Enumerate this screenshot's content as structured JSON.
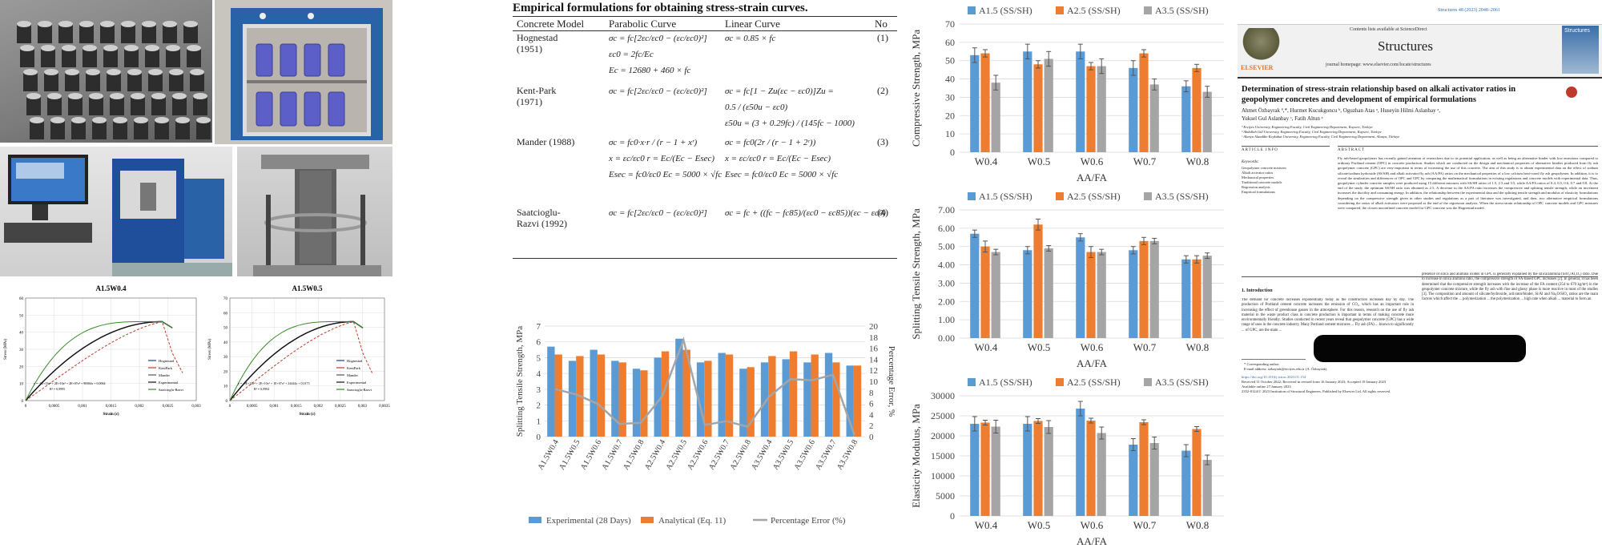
{
  "photos": {
    "specimens": "specimens-photo",
    "oven": "oven-photo",
    "testing_machine": "testing-machine-photo",
    "specimen_in_frame": "specimen-frame-photo"
  },
  "stress_strain_charts": [
    {
      "title": "A1.5W0.4",
      "ylabel": "Stress (MPa)",
      "xlabel": "Strain (ε)",
      "yticks": [
        "0",
        "10",
        "20",
        "30",
        "40",
        "50",
        "60"
      ],
      "xticks": [
        "0",
        "0,0005",
        "0,001",
        "0,0015",
        "0,002",
        "0,0025",
        "0,003"
      ],
      "legend": [
        "Hognestad",
        "KentPark",
        "Mander",
        "Experimental",
        "Saatcioglu-Razvi"
      ],
      "equation": "y = -1E+13x⁴ + 2E+10x³ + 2E+07x² + 98384x + 0,0064",
      "r2": "R² = 0,9995"
    },
    {
      "title": "A1.5W0.5",
      "ylabel": "Stress (MPa)",
      "xlabel": "Strain (ε)",
      "yticks": [
        "0",
        "10",
        "20",
        "30",
        "40",
        "50",
        "60",
        "70"
      ],
      "xticks": [
        "0",
        "0,0005",
        "0,001",
        "0,0015",
        "0,002",
        "0,0025",
        "0,003",
        "0,0035"
      ],
      "legend": [
        "Hognestad",
        "KentPark",
        "Mander",
        "Experimental",
        "Saatcioglu-Razvi"
      ],
      "equation": "y = -9E+12x⁴ + 2E+10x³ + 1E+07x² + 24444x + 0,0173",
      "r2": "R² = 0,9994"
    }
  ],
  "table": {
    "title": "Empirical formulations for obtaining stress-strain curves.",
    "headers": [
      "Concrete Model",
      "Parabolic Curve",
      "Linear Curve",
      "No"
    ],
    "rows": [
      {
        "model": "Hognestad (1951)",
        "parabolic": [
          "σc = fc[2εc/εc0 − (εc/εc0)²]",
          "εc0 = 2fc/Ec",
          "Ec = 12680 + 460 × fc"
        ],
        "linear": [
          "σc = 0.85 × fc"
        ],
        "no": "(1)"
      },
      {
        "model": "Kent-Park (1971)",
        "parabolic": [
          "σc = fc[2εc/εc0 − (εc/εc0)²]"
        ],
        "linear": [
          "σc = fc[1 − Zu(εc − εc0)]Zu =",
          "0.5 / (ε50u − εc0)",
          "ε50u = (3 + 0.29fc) / (145fc − 1000)"
        ],
        "no": "(2)"
      },
      {
        "model": "Mander (1988)",
        "parabolic": [
          "σc = fc0·x·r / (r − 1 + xʳ)",
          "x = εc/εc0  r = Ec/(Ec − Esec)",
          "Esec = fc0/εc0  Ec = 5000 × √fc"
        ],
        "linear": [
          "σc = fc0(2r / (r − 1 + 2ʳ))",
          "x = εc/εc0  r = Ec/(Ec − Esec)",
          "Esec = fc0/εc0  Ec = 5000 × √fc"
        ],
        "no": "(3)"
      },
      {
        "model": "Saatcioglu-Razvi (1992)",
        "parabolic": [
          "σc = fc[2εc/εc0 − (εc/εc0)²]"
        ],
        "linear": [
          "σc = fc + ((fc − fc85)/(εc0 − εc85))(εc − εc0)"
        ],
        "no": "(4)"
      }
    ]
  },
  "split_chart": {
    "chart_data": {
      "type": "bar",
      "categories": [
        "A1.5W0.4",
        "A1.5W0.5",
        "A1.5W0.6",
        "A1.5W0.7",
        "A1.5W0.8",
        "A2.5W0.4",
        "A2.5W0.5",
        "A2.5W0.6",
        "A2.5W0.7",
        "A2.5W0.8",
        "A3.5W0.4",
        "A3.5W0.5",
        "A3.5W0.6",
        "A3.5W0.7",
        "A3.5W0.8"
      ],
      "series": [
        {
          "name": "Experimental (28 Days)",
          "values": [
            5.7,
            4.8,
            5.5,
            4.8,
            4.3,
            5.0,
            6.2,
            4.7,
            5.3,
            4.3,
            4.7,
            4.9,
            4.7,
            5.3,
            4.5
          ]
        },
        {
          "name": "Analytical (Eq. 11)",
          "values": [
            5.2,
            5.1,
            5.2,
            4.7,
            4.2,
            5.4,
            5.5,
            4.8,
            5.2,
            4.4,
            5.1,
            5.4,
            5.2,
            4.7,
            4.5
          ]
        },
        {
          "name": "Percentage Error (%)",
          "values": [
            8.6,
            7.6,
            5.9,
            2.3,
            2.5,
            7.3,
            17.5,
            2.1,
            2.8,
            1.8,
            7.2,
            10.4,
            10.2,
            11.2,
            0.3
          ]
        }
      ],
      "ylabel": "Splitting Tensile Strength, MPa",
      "y2label": "Percentage Error, %",
      "ylim": [
        0,
        7
      ],
      "y2lim": [
        0,
        20
      ],
      "yticks": [
        "0",
        "1",
        "2",
        "3",
        "4",
        "5",
        "6",
        "7"
      ],
      "y2ticks": [
        "0",
        "2",
        "4",
        "6",
        "8",
        "10",
        "12",
        "14",
        "16",
        "18",
        "20"
      ],
      "legend_position": "bottom"
    }
  },
  "right_charts": [
    {
      "chart_data": {
        "type": "bar",
        "categories": [
          "W0.4",
          "W0.5",
          "W0.6",
          "W0.7",
          "W0.8"
        ],
        "series": [
          {
            "name": "A1.5 (SS/SH)",
            "values": [
              53,
              55,
              55,
              46,
              36
            ]
          },
          {
            "name": "A2.5 (SS/SH)",
            "values": [
              54,
              48,
              47,
              54,
              46
            ]
          },
          {
            "name": "A3.5 (SS/SH)",
            "values": [
              38,
              51,
              47,
              37,
              33
            ]
          }
        ],
        "errors": [
          [
            4,
            4,
            4,
            4,
            3
          ],
          [
            2,
            2,
            2,
            2,
            2
          ],
          [
            4,
            4,
            4,
            3,
            3
          ]
        ],
        "ylabel": "Compressive Strength, MPa",
        "xlabel": "AA/FA",
        "ylim": [
          0,
          70
        ],
        "yticks": [
          "0",
          "10",
          "20",
          "30",
          "40",
          "50",
          "60",
          "70"
        ],
        "legend_position": "top-left"
      }
    },
    {
      "chart_data": {
        "type": "bar",
        "categories": [
          "W0.4",
          "W0.5",
          "W0.6",
          "W0.7",
          "W0.8"
        ],
        "series": [
          {
            "name": "A1.5 (SS/SH)",
            "values": [
              5.7,
              4.8,
              5.5,
              4.8,
              4.3
            ]
          },
          {
            "name": "A2.5 (SS/SH)",
            "values": [
              5.0,
              6.2,
              4.7,
              5.3,
              4.3
            ]
          },
          {
            "name": "A3.5 (SS/SH)",
            "values": [
              4.7,
              4.9,
              4.7,
              5.3,
              4.5
            ]
          }
        ],
        "errors": [
          [
            0.2,
            0.2,
            0.2,
            0.2,
            0.2
          ],
          [
            0.3,
            0.3,
            0.3,
            0.2,
            0.2
          ],
          [
            0.15,
            0.15,
            0.15,
            0.15,
            0.15
          ]
        ],
        "ylabel": "Splitting Tensile Strength, MPa",
        "xlabel": "AA/FA",
        "ylim": [
          0,
          7
        ],
        "yticks": [
          "0.00",
          "1.00",
          "2.00",
          "3.00",
          "4.00",
          "5.00",
          "6.00",
          "7.00"
        ],
        "legend_position": "top-left"
      }
    },
    {
      "chart_data": {
        "type": "bar",
        "categories": [
          "W0.4",
          "W0.5",
          "W0.6",
          "W0.7",
          "W0.8"
        ],
        "series": [
          {
            "name": "A1.5 (SS/SH)",
            "values": [
              23000,
              23000,
              26800,
              17800,
              16300
            ]
          },
          {
            "name": "A2.5 (SS/SH)",
            "values": [
              23300,
              23700,
              23800,
              23400,
              21700
            ]
          },
          {
            "name": "A3.5 (SS/SH)",
            "values": [
              22300,
              22200,
              20700,
              18200,
              14000
            ]
          }
        ],
        "errors": [
          [
            1800,
            1800,
            1800,
            1500,
            1500
          ],
          [
            600,
            600,
            600,
            600,
            600
          ],
          [
            1600,
            1600,
            1500,
            1500,
            1200
          ]
        ],
        "ylabel": "Elasticity Modulus, MPa",
        "xlabel": "AA/FA",
        "ylim": [
          0,
          30000
        ],
        "yticks": [
          "0",
          "5000",
          "10000",
          "15000",
          "20000",
          "25000",
          "30000"
        ],
        "legend_position": "top-left"
      }
    }
  ],
  "colors": {
    "blue": "#5b9bd5",
    "orange": "#ed7d31",
    "gray": "#a5a5a5",
    "error_line": "#a5a5a5"
  },
  "paper": {
    "journal_ref": "Structures 48 (2023) 2048–2061",
    "contents_line": "Contents lists available at ScienceDirect",
    "journal": "Structures",
    "homepage": "journal homepage: www.elsevier.com/locate/structures",
    "publisher": "ELSEVIER",
    "cover_label": "Structures",
    "title": "Determination of stress-strain relationship based on alkali activator ratios in geopolymer concretes and development of empirical formulations",
    "authors_line1": "Ahmet Özbayrak ª,*, Hurmet Kucukgoncu ᵇ, Oguzhan Atas ᵃ, Huseyin Hilmi Aslanbay ᵃ,",
    "authors_line2": "Yuksel Gul Aslanbay ᶜ, Fatih Altun ᵃ",
    "affil1": "ª Erciyes University, Engineering Faculty, Civil Engineering Department, Kayseri, Türkiye",
    "affil2": "ᵇ Abdullah Gül University, Engineering Faculty, Civil Engineering Department, Kayseri, Türkiye",
    "affil3": "ᶜ Alanya Alaaddin Keykubat University, Engineering Faculty, Civil Engineering Department, Alanya, Türkiye",
    "article_info": "ARTICLE INFO",
    "abstract_head": "ABSTRACT",
    "keywords_head": "Keywords:",
    "keywords": [
      "Geopolymer concrete mixtures",
      "Alkali activator ratios",
      "Mechanical properties",
      "Traditional concrete models",
      "Regression analysis",
      "Empirical formulations"
    ],
    "abstract": "Fly ash-based geopolymer has recently gained attention of researchers due to its potential application, as well as being an alternative binder with low emissions compared to ordinary Portland cement (OPC) in concrete production. Studies which are conducted on the design and mechanical properties of alternative binders produced from fly ash geopolymer concrete (GPC) are very important in terms of increasing the use of this concrete. The aim of this study is to obtain experimental data on the effect of sodium silicate/sodium hydroxide (SS/SH) and alkali activator/fly ash (AA/FA) ratios on the mechanical properties of a low calcium heat-cured fly ash geopolymer. In addition, it is to reveal the similarities and differences of OPC and GPC by comparing the mathematical formulations in existing regulations and concrete models with experimental data. Thus, geopolymer cylinder concrete samples were produced using 15 different mixtures with SS/SH ratios of 1.5, 2.5 and 3.5, while AA/FA ratios of 0.4, 0.5, 0.6, 0.7 and 0.8. At the end of the study, the optimum SS/SH ratio was obtained as 2.5. A decrease in the AA/FA ratio increases the compressive and splitting tensile strength, while an increment increases the ductility and consuming energy. In addition, the relationship between the experimental data and the splitting tensile strength and modulus of elasticity formulations depending on the compressive strength given in other studies and regulations as a part of literature was investigated, and then, two alternative empirical formulations considering the ratios of alkali activators were proposed as the end of the regression analysis. When the stress-strain relationship of OPC concrete models and GPC mixtures were compared, the closest unconfined concrete model for GPC concrete was the Hognestad model.",
    "intro_head": "1.  Introduction",
    "intro_col1": "The demand for concrete increases exponentially today as the construction increases day by day. The production of Portland cement concrete increases the emission of CO₂, which has an important role in increasing the effect of greenhouse gasses in the atmosphere. For this reason, research on the use of fly ash material in the waste product class in concrete production is important in terms of making concrete more environmentally friendly. Studies conducted in recent years reveal that geopolymer concrete (GPC) has a wide range of uses in the concrete industry. Many Portland cement mixtures ... Fly ash (FA) ... known to significantly ... of GPC, are the main ...",
    "intro_col2": "presence of silica and alumina oxides in GPC is generally explained by the silica/alumina (SiO₂/Al₂O₃) ratio. Due to increase in silica alumina ratio, the compressive strength of FA-based GPC increases [2]. In general, it has been determined that the compressive strength increases with the increase of the FA content (254 to 670 kg/m³) in the geopolymer concrete mixture, while the fly ash with fine and glassy phase is more reactive in most of the studies [3]. The composition and amount of silicate/hydroxide, activator/binder, Si/Al and Na₂O/SiO₂ ratios are the main factors which affect the ... polymerization ... the polymerization ... high rate when alkali ... material to form an",
    "footnote1": "* Corresponding author.",
    "footnote2": "E-mail address: ozbayrak@erciyes.edu.tr (A. Özbayrak).",
    "doi": "https://doi.org/10.1016/j.istruc.2023.01.154",
    "received": "Received 11 October 2022; Received in revised form 16 January 2023; Accepted 19 January 2023",
    "available": "Available online 27 January 2023",
    "issn": "2352-0124/© 2023 Institution of Structural Engineers. Published by Elsevier Ltd. All rights reserved."
  }
}
